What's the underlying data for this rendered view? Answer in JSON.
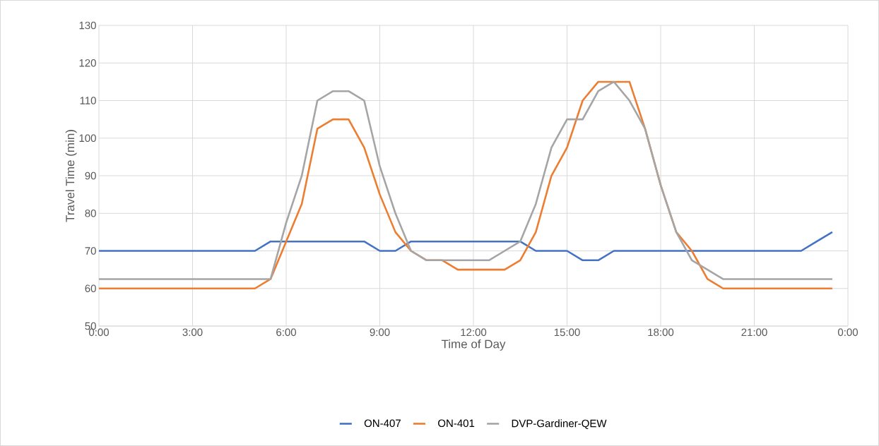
{
  "chart_data": {
    "type": "line",
    "xlabel": "Time of Day",
    "ylabel": "Travel Time (min)",
    "x": [
      0,
      0.5,
      1,
      1.5,
      2,
      2.5,
      3,
      3.5,
      4,
      4.5,
      5,
      5.5,
      6,
      6.5,
      7,
      7.5,
      8,
      8.5,
      9,
      9.5,
      10,
      10.5,
      11,
      11.5,
      12,
      12.5,
      13,
      13.5,
      14,
      14.5,
      15,
      15.5,
      16,
      16.5,
      17,
      17.5,
      18,
      18.5,
      19,
      19.5,
      20,
      20.5,
      21,
      21.5,
      22,
      22.5,
      23,
      23.5
    ],
    "series": [
      {
        "name": "ON-407",
        "color": "#4472c4",
        "values": [
          70,
          70,
          70,
          70,
          70,
          70,
          70,
          70,
          70,
          70,
          70,
          72.5,
          72.5,
          72.5,
          72.5,
          72.5,
          72.5,
          72.5,
          70,
          70,
          72.5,
          72.5,
          72.5,
          72.5,
          72.5,
          72.5,
          72.5,
          72.5,
          70,
          70,
          70,
          67.5,
          67.5,
          70,
          70,
          70,
          70,
          70,
          70,
          70,
          70,
          70,
          70,
          70,
          70,
          70,
          72.5,
          75
        ]
      },
      {
        "name": "ON-401",
        "color": "#ed7d31",
        "values": [
          60,
          60,
          60,
          60,
          60,
          60,
          60,
          60,
          60,
          60,
          60,
          62.5,
          72.5,
          82.5,
          102.5,
          105,
          105,
          97.5,
          85,
          75,
          70,
          67.5,
          67.5,
          65,
          65,
          65,
          65,
          67.5,
          75,
          90,
          97.5,
          110,
          115,
          115,
          115,
          102.5,
          87.5,
          75,
          70,
          62.5,
          60,
          60,
          60,
          60,
          60,
          60,
          60,
          60
        ]
      },
      {
        "name": "DVP-Gardiner-QEW",
        "color": "#a5a5a5",
        "values": [
          62.5,
          62.5,
          62.5,
          62.5,
          62.5,
          62.5,
          62.5,
          62.5,
          62.5,
          62.5,
          62.5,
          62.5,
          77.5,
          90,
          110,
          112.5,
          112.5,
          110,
          92.5,
          80,
          70,
          67.5,
          67.5,
          67.5,
          67.5,
          67.5,
          70,
          72.5,
          82.5,
          97.5,
          105,
          105,
          112.5,
          115,
          110,
          102.5,
          87.5,
          75,
          67.5,
          65,
          62.5,
          62.5,
          62.5,
          62.5,
          62.5,
          62.5,
          62.5,
          62.5
        ]
      }
    ],
    "xlim": [
      0,
      24
    ],
    "xticks": [
      {
        "value": 0,
        "label": "0:00"
      },
      {
        "value": 3,
        "label": "3:00"
      },
      {
        "value": 6,
        "label": "6:00"
      },
      {
        "value": 9,
        "label": "9:00"
      },
      {
        "value": 12,
        "label": "12:00"
      },
      {
        "value": 15,
        "label": "15:00"
      },
      {
        "value": 18,
        "label": "18:00"
      },
      {
        "value": 21,
        "label": "21:00"
      },
      {
        "value": 24,
        "label": "0:00"
      }
    ],
    "ylim": [
      50,
      130
    ],
    "yticks": [
      50,
      60,
      70,
      80,
      90,
      100,
      110,
      120,
      130
    ],
    "grid": true,
    "legend": "bottom",
    "marker": "none",
    "line_style": "solid"
  }
}
